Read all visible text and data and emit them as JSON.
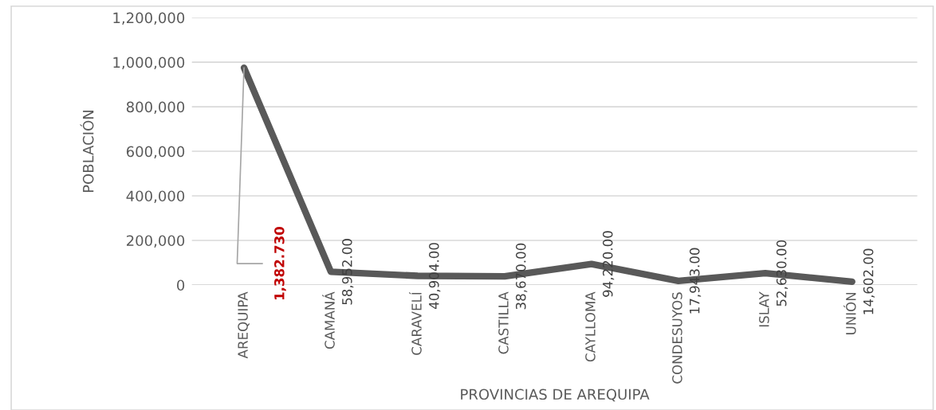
{
  "chart_data": {
    "type": "line",
    "xlabel": "PROVINCIAS DE AREQUIPA",
    "ylabel": "POBLACIÓN",
    "categories": [
      "AREQUIPA",
      "CAMANÁ",
      "CARAVELÍ",
      "CASTILLA",
      "CAYLLOMA",
      "CONDESUYOS",
      "ISLAY",
      "UNIÓN"
    ],
    "series": [
      {
        "color": "#595959",
        "values": [
          975000,
          58952,
          40904,
          38670,
          94220,
          17943,
          52630,
          14602
        ],
        "value_labels": [
          null,
          "58,952.00",
          "40,904.00",
          "38,670.00",
          "94,220.00",
          "17,943.00",
          "52,630.00",
          "14,602.00"
        ]
      }
    ],
    "annotations": [
      {
        "text": "1,382.730",
        "x": "AREQUIPA",
        "y": 975000
      }
    ],
    "ylim": [
      0,
      1200000
    ],
    "yticks": [
      {
        "value": 0,
        "label": "0"
      },
      {
        "value": 200000,
        "label": "200,000"
      },
      {
        "value": 400000,
        "label": "400,000"
      },
      {
        "value": 600000,
        "label": "600,000"
      },
      {
        "value": 800000,
        "label": "800,000"
      },
      {
        "value": 1000000,
        "label": "1,000,000"
      },
      {
        "value": 1200000,
        "label": "1,200,000"
      }
    ],
    "grid": "y",
    "legend": false,
    "marker": "none",
    "line_style": "solid"
  }
}
